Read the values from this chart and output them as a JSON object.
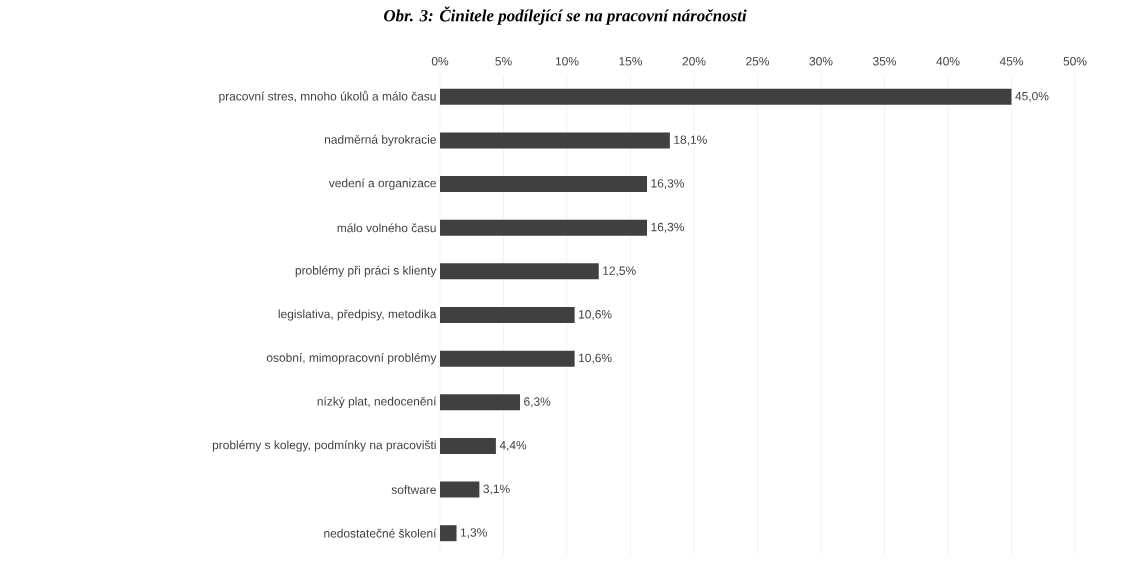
{
  "chart_data": {
    "type": "bar",
    "orientation": "horizontal",
    "title": "Obr. 3: Činitele podílející se na pracovní náročnosti",
    "categories": [
      "pracovní stres, mnoho úkolů a málo času",
      "nadměrná byrokracie",
      "vedení a organizace",
      "málo volného času",
      "problémy při práci s klienty",
      "legislativa, předpisy, metodika",
      "osobní, mimopracovní problémy",
      "nízký plat, nedocenění",
      "problémy s kolegy, podmínky na pracovišti",
      "software",
      "nedostatečné školení"
    ],
    "values": [
      45.0,
      18.1,
      16.3,
      16.3,
      12.5,
      10.6,
      10.6,
      6.3,
      4.4,
      3.1,
      1.3
    ],
    "value_labels": [
      "45,0%",
      "18,1%",
      "16,3%",
      "16,3%",
      "12,5%",
      "10,6%",
      "10,6%",
      "6,3%",
      "4,4%",
      "3,1%",
      "1,3%"
    ],
    "color": "#404040",
    "xlim": [
      0,
      50
    ],
    "xticks": [
      {
        "value": 0,
        "label": "0%"
      },
      {
        "value": 5,
        "label": "5%"
      },
      {
        "value": 10,
        "label": "10%"
      },
      {
        "value": 15,
        "label": "15%"
      },
      {
        "value": 20,
        "label": "20%"
      },
      {
        "value": 25,
        "label": "25%"
      },
      {
        "value": 30,
        "label": "30%"
      },
      {
        "value": 35,
        "label": "35%"
      },
      {
        "value": 40,
        "label": "40%"
      },
      {
        "value": 45,
        "label": "45%"
      },
      {
        "value": 50,
        "label": "50%"
      }
    ],
    "grid": "x"
  }
}
